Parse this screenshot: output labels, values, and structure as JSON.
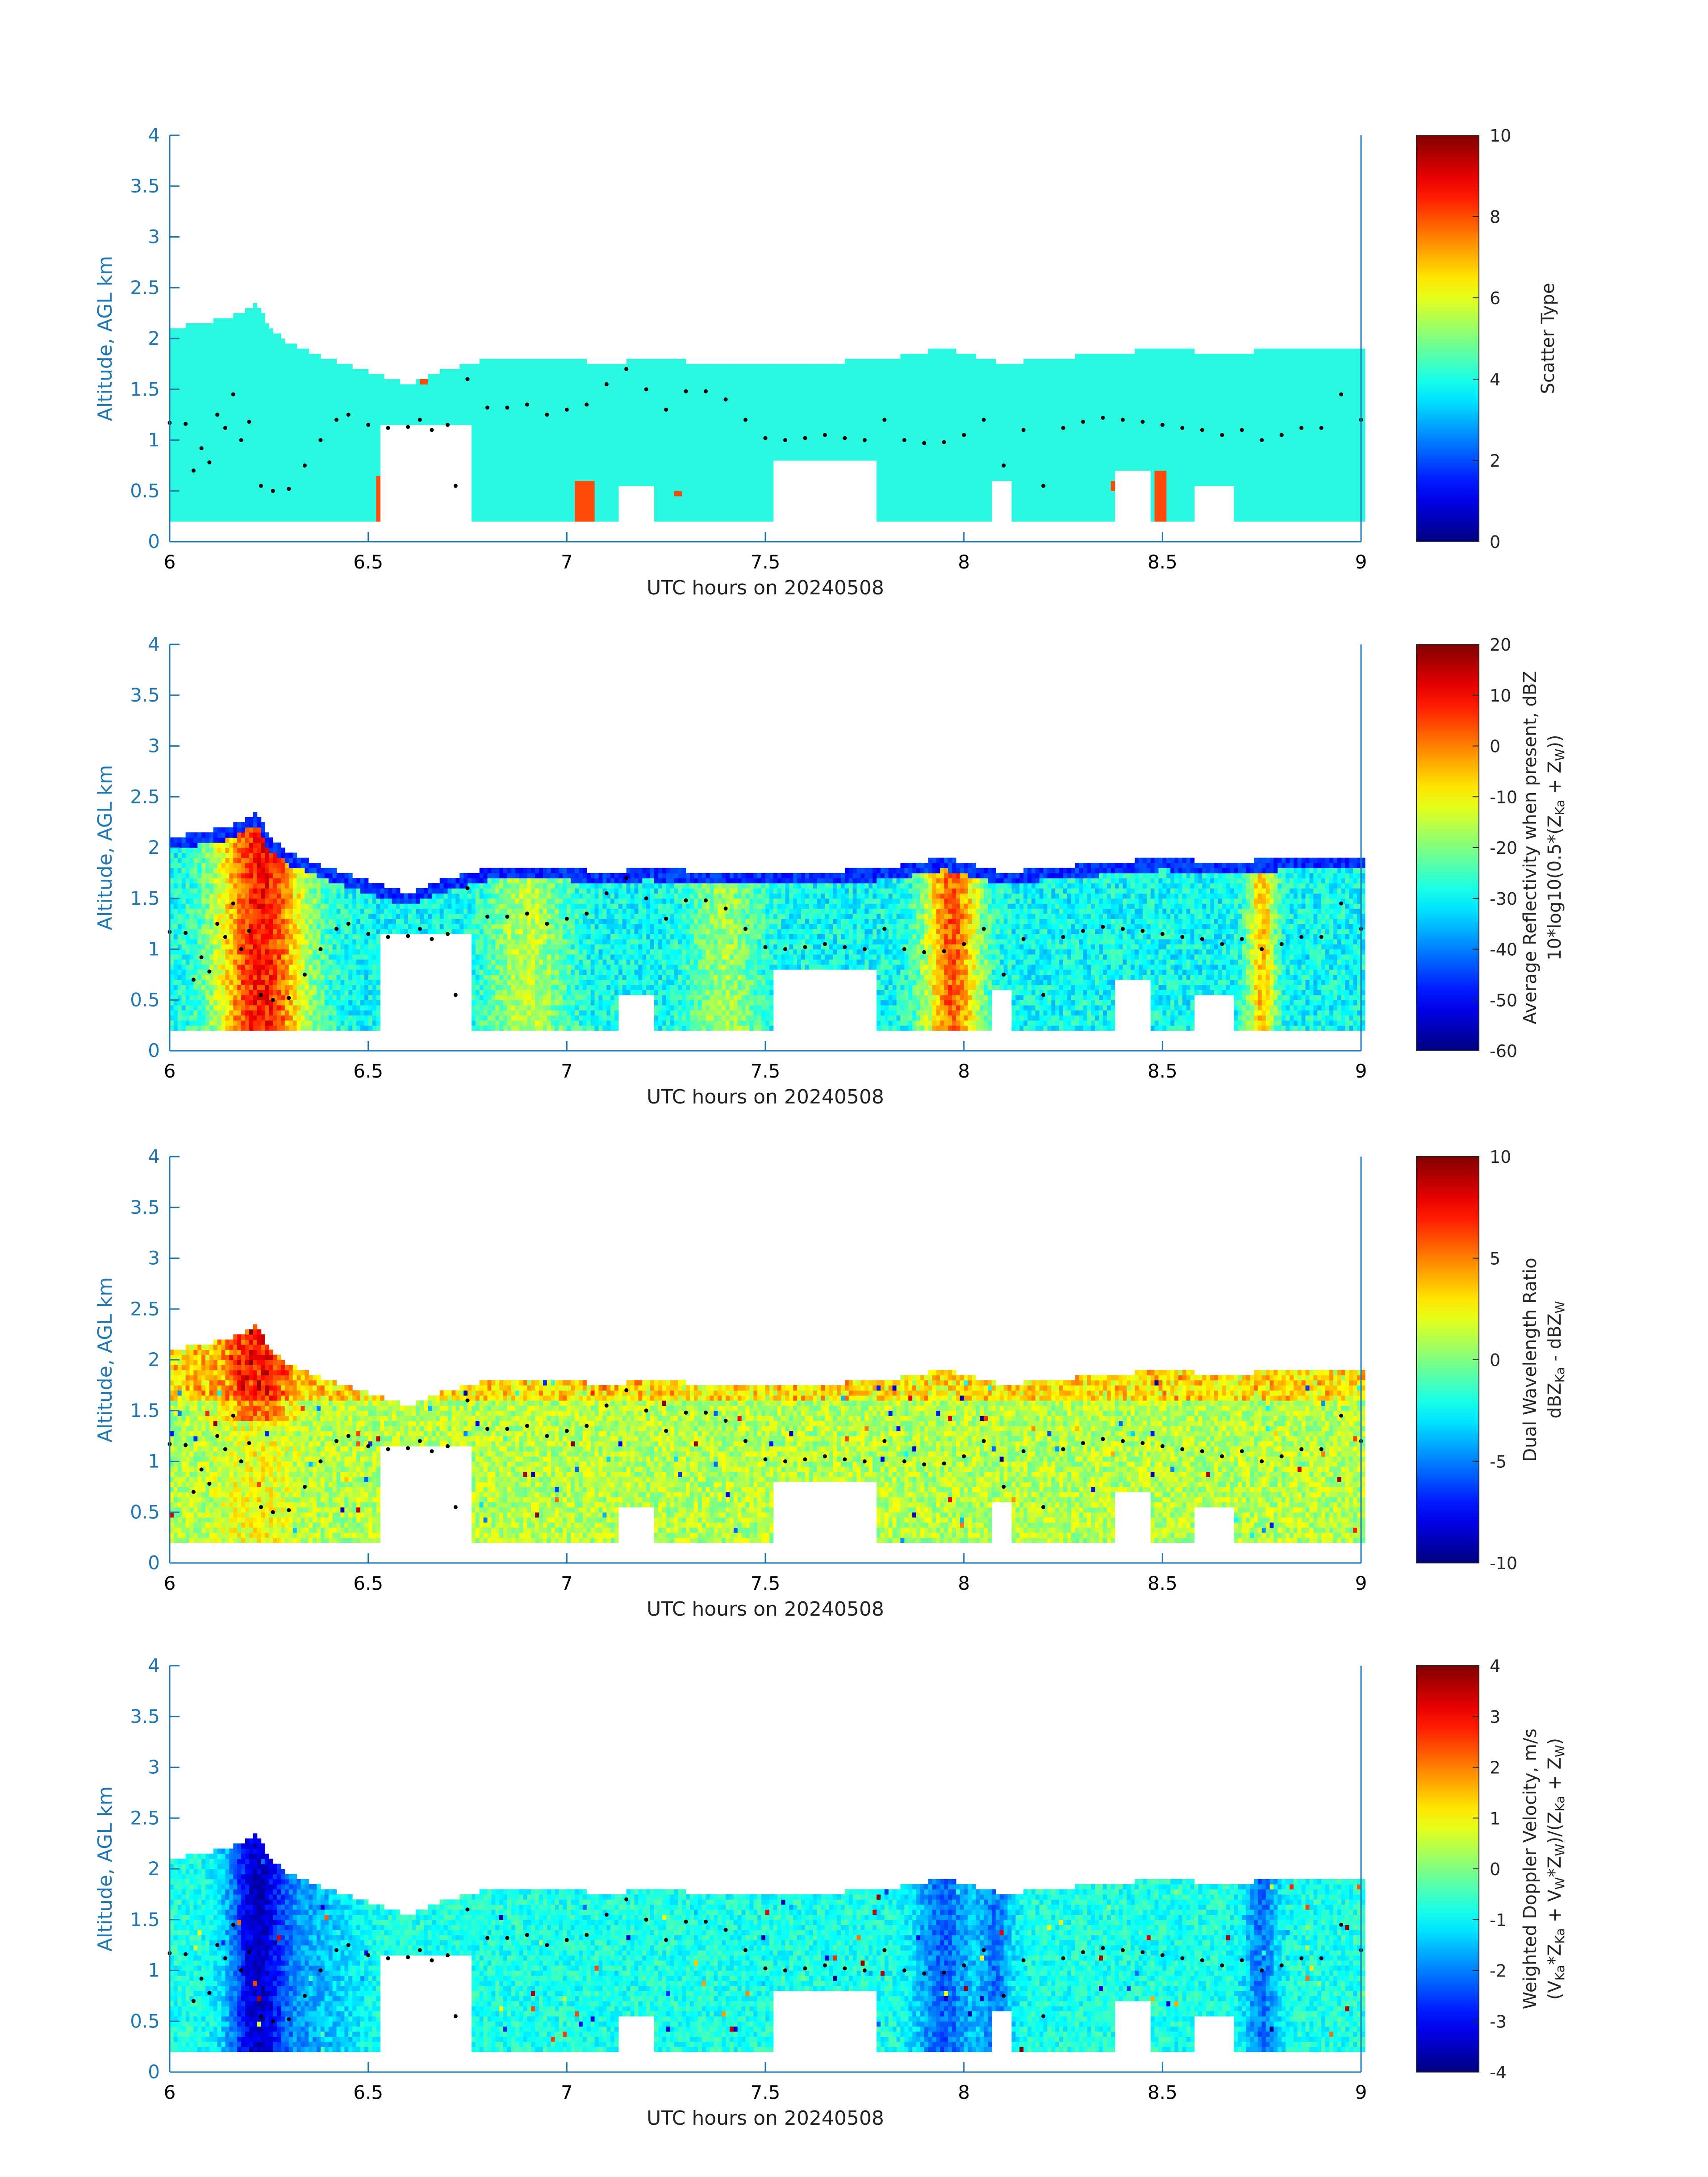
{
  "chart_data": [
    {
      "type": "heatmap",
      "x_label": "UTC hours on 20240508",
      "y_label": "Altitude, AGL km",
      "x_ticks": [
        "6",
        "6.5",
        "7",
        "7.5",
        "8",
        "8.5",
        "9"
      ],
      "y_ticks": [
        "0",
        "0.5",
        "1",
        "1.5",
        "2",
        "2.5",
        "3",
        "3.5",
        "4"
      ],
      "x_range": [
        6,
        9
      ],
      "y_range": [
        0,
        4
      ],
      "colorbar": {
        "label_lines": [
          "Scatter Type"
        ],
        "range": [
          0,
          10
        ],
        "ticks": [
          "0",
          "2",
          "4",
          "6",
          "8",
          "10"
        ]
      },
      "top_profile_km": [
        [
          6.0,
          2.1
        ],
        [
          6.15,
          2.2
        ],
        [
          6.22,
          2.35
        ],
        [
          6.25,
          2.1
        ],
        [
          6.3,
          1.95
        ],
        [
          6.4,
          1.8
        ],
        [
          6.52,
          1.65
        ],
        [
          6.6,
          1.55
        ],
        [
          6.7,
          1.7
        ],
        [
          6.8,
          1.8
        ],
        [
          7.0,
          1.8
        ],
        [
          7.1,
          1.75
        ],
        [
          7.2,
          1.8
        ],
        [
          7.4,
          1.75
        ],
        [
          7.6,
          1.75
        ],
        [
          7.8,
          1.8
        ],
        [
          7.95,
          1.9
        ],
        [
          8.1,
          1.75
        ],
        [
          8.2,
          1.8
        ],
        [
          8.35,
          1.85
        ],
        [
          8.5,
          1.9
        ],
        [
          8.65,
          1.85
        ],
        [
          8.8,
          1.9
        ],
        [
          9.0,
          1.9
        ]
      ],
      "black_dots_km": [
        [
          6.0,
          1.17
        ],
        [
          6.04,
          1.16
        ],
        [
          6.06,
          0.7
        ],
        [
          6.08,
          0.92
        ],
        [
          6.1,
          0.78
        ],
        [
          6.12,
          1.25
        ],
        [
          6.14,
          1.12
        ],
        [
          6.16,
          1.45
        ],
        [
          6.18,
          1.0
        ],
        [
          6.2,
          1.18
        ],
        [
          6.23,
          0.55
        ],
        [
          6.26,
          0.5
        ],
        [
          6.3,
          0.52
        ],
        [
          6.34,
          0.75
        ],
        [
          6.38,
          1.0
        ],
        [
          6.42,
          1.2
        ],
        [
          6.45,
          1.25
        ],
        [
          6.5,
          1.15
        ],
        [
          6.55,
          1.12
        ],
        [
          6.6,
          1.13
        ],
        [
          6.63,
          1.2
        ],
        [
          6.66,
          1.1
        ],
        [
          6.7,
          1.15
        ],
        [
          6.72,
          0.55
        ],
        [
          6.75,
          1.6
        ],
        [
          6.8,
          1.32
        ],
        [
          6.85,
          1.32
        ],
        [
          6.9,
          1.35
        ],
        [
          6.95,
          1.25
        ],
        [
          7.0,
          1.3
        ],
        [
          7.05,
          1.35
        ],
        [
          7.1,
          1.55
        ],
        [
          7.15,
          1.7
        ],
        [
          7.2,
          1.5
        ],
        [
          7.25,
          1.3
        ],
        [
          7.3,
          1.48
        ],
        [
          7.35,
          1.48
        ],
        [
          7.4,
          1.4
        ],
        [
          7.45,
          1.2
        ],
        [
          7.5,
          1.02
        ],
        [
          7.55,
          1.0
        ],
        [
          7.6,
          1.02
        ],
        [
          7.65,
          1.05
        ],
        [
          7.7,
          1.02
        ],
        [
          7.75,
          1.0
        ],
        [
          7.8,
          1.2
        ],
        [
          7.85,
          1.0
        ],
        [
          7.9,
          0.97
        ],
        [
          7.95,
          0.98
        ],
        [
          8.0,
          1.05
        ],
        [
          8.05,
          1.2
        ],
        [
          8.1,
          0.75
        ],
        [
          8.15,
          1.1
        ],
        [
          8.2,
          0.55
        ],
        [
          8.25,
          1.12
        ],
        [
          8.3,
          1.18
        ],
        [
          8.35,
          1.22
        ],
        [
          8.4,
          1.2
        ],
        [
          8.45,
          1.18
        ],
        [
          8.5,
          1.15
        ],
        [
          8.55,
          1.12
        ],
        [
          8.6,
          1.1
        ],
        [
          8.65,
          1.05
        ],
        [
          8.7,
          1.1
        ],
        [
          8.75,
          1.0
        ],
        [
          8.8,
          1.05
        ],
        [
          8.85,
          1.12
        ],
        [
          8.9,
          1.12
        ],
        [
          8.95,
          1.45
        ],
        [
          9.0,
          1.2
        ]
      ]
    },
    {
      "type": "heatmap",
      "x_label": "UTC hours on 20240508",
      "y_label": "Altitude, AGL km",
      "x_ticks": [
        "6",
        "6.5",
        "7",
        "7.5",
        "8",
        "8.5",
        "9"
      ],
      "y_ticks": [
        "0",
        "0.5",
        "1",
        "1.5",
        "2",
        "2.5",
        "3",
        "3.5",
        "4"
      ],
      "x_range": [
        6,
        9
      ],
      "y_range": [
        0,
        4
      ],
      "colorbar": {
        "label_lines": [
          "Average Reflectivity when present, dBZ",
          "10*log10(0.5*(Z_Ka + Z_W))"
        ],
        "range": [
          -60,
          20
        ],
        "ticks": [
          "-60",
          "-50",
          "-40",
          "-30",
          "-20",
          "-10",
          "0",
          "10",
          "20"
        ]
      }
    },
    {
      "type": "heatmap",
      "x_label": "UTC hours on 20240508",
      "y_label": "Altitude, AGL km",
      "x_ticks": [
        "6",
        "6.5",
        "7",
        "7.5",
        "8",
        "8.5",
        "9"
      ],
      "y_ticks": [
        "0",
        "0.5",
        "1",
        "1.5",
        "2",
        "2.5",
        "3",
        "3.5",
        "4"
      ],
      "x_range": [
        6,
        9
      ],
      "y_range": [
        0,
        4
      ],
      "colorbar": {
        "label_lines": [
          "Dual Wavelength Ratio",
          "dBZ_Ka - dBZ_W"
        ],
        "range": [
          -10,
          10
        ],
        "ticks": [
          "-10",
          "-5",
          "0",
          "5",
          "10"
        ]
      }
    },
    {
      "type": "heatmap",
      "x_label": "UTC hours on 20240508",
      "y_label": "Altitude, AGL km",
      "x_ticks": [
        "6",
        "6.5",
        "7",
        "7.5",
        "8",
        "8.5",
        "9"
      ],
      "y_ticks": [
        "0",
        "0.5",
        "1",
        "1.5",
        "2",
        "2.5",
        "3",
        "3.5",
        "4"
      ],
      "x_range": [
        6,
        9
      ],
      "y_range": [
        0,
        4
      ],
      "colorbar": {
        "label_lines": [
          "Weighted Doppler Velocity, m/s",
          "(V_Ka*Z_Ka + V_W*Z_W)/(Z_Ka + Z_W)"
        ],
        "range": [
          -4,
          4
        ],
        "ticks": [
          "-4",
          "-3",
          "-2",
          "-1",
          "0",
          "1",
          "2",
          "3",
          "4"
        ]
      }
    }
  ],
  "colors": {
    "axis": "#1f77b4",
    "jet_stops": [
      "#00008f",
      "#0000ff",
      "#00ffff",
      "#ffff00",
      "#ff0000",
      "#800000"
    ],
    "scatter_main": "#2af8e0",
    "scatter_alt": "#ff4a0a",
    "dots": "#000000"
  }
}
